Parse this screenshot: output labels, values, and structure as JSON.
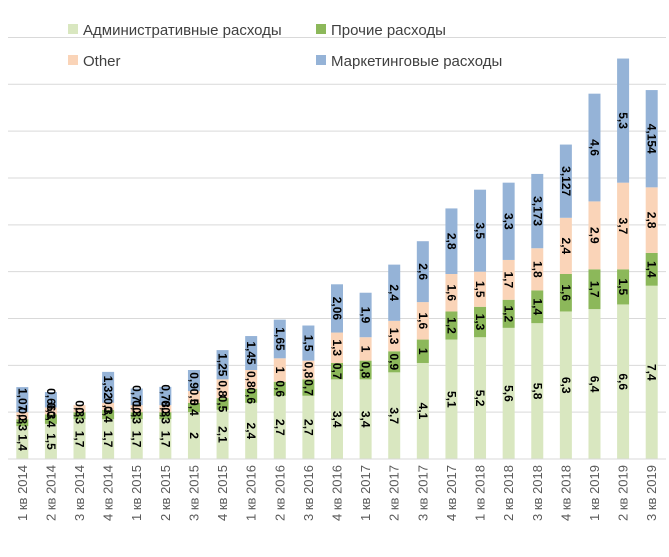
{
  "chart_data": {
    "type": "bar",
    "stacked": true,
    "title": "",
    "xlabel": "",
    "ylabel": "",
    "ylim": [
      0,
      19.6
    ],
    "grid": true,
    "legend_position": "top",
    "categories": [
      "1 кв 2014",
      "2 кв 2014",
      "3 кв 2014",
      "4 кв 2014",
      "1 кв 2015",
      "2 кв 2015",
      "3 кв 2015",
      "4 кв 2015",
      "1 кв 2016",
      "2 кв 2016",
      "3 кв 2016",
      "4 кв 2016",
      "1 кв 2017",
      "2 кв 2017",
      "3 кв 2017",
      "4 кв 2017",
      "1 кв 2018",
      "2 кв 2018",
      "3 кв 2018",
      "4 кв 2018",
      "1 кв 2019",
      "2 кв 2019",
      "3 кв 2019"
    ],
    "series": [
      {
        "name": "Административные расходы",
        "color": "#d9e7c0",
        "values": [
          1.4,
          1.5,
          1.7,
          1.7,
          1.7,
          1.7,
          2,
          2.1,
          2.4,
          2.7,
          2.7,
          3.4,
          3.4,
          3.7,
          4.1,
          5.1,
          5.2,
          5.6,
          5.8,
          6.3,
          6.4,
          6.6,
          7.4
        ],
        "labels": [
          "1,4",
          "1,5",
          "1,7",
          "1,7",
          "1,7",
          "1,7",
          "2",
          "2,1",
          "2,4",
          "2,7",
          "2,7",
          "3,4",
          "3,4",
          "3,7",
          "4,1",
          "5,1",
          "5,2",
          "5,6",
          "5,8",
          "6,3",
          "6,4",
          "6,6",
          "7,4"
        ]
      },
      {
        "name": "Прочие расходы",
        "color": "#8cb85a",
        "values": [
          0.3,
          0.4,
          0.3,
          0.4,
          0.3,
          0.3,
          0.4,
          0.5,
          0.6,
          0.6,
          0.7,
          0.7,
          0.8,
          0.9,
          1,
          1.2,
          1.3,
          1.2,
          1.4,
          1.6,
          1.7,
          1.5,
          1.4
        ],
        "labels": [
          "0,3",
          "0,4",
          "0,3",
          "0,4",
          "0,3",
          "0,3",
          "0,4",
          "0,5",
          "0,6",
          "0,6",
          "0,7",
          "0,7",
          "0,8",
          "0,9",
          "1",
          "1,2",
          "1,3",
          "1,2",
          "1,4",
          "1,6",
          "1,7",
          "1,5",
          "1,4"
        ]
      },
      {
        "name": "Other",
        "color": "#fad4b8",
        "values": [
          0.3,
          0.3,
          0.3,
          0.3,
          0.3,
          0.3,
          0.5,
          0.8,
          0.8,
          1,
          0.8,
          1.3,
          1,
          1.3,
          1.6,
          1.6,
          1.5,
          1.7,
          1.8,
          2.4,
          2.9,
          3.7,
          2.8
        ],
        "labels": [
          "0,3",
          "0,3",
          "0,3",
          "0,3",
          "0,3",
          "0,3",
          "0,5",
          "0,8",
          "0,8",
          "1",
          "0,8",
          "1,3",
          "1",
          "1,3",
          "1,6",
          "1,6",
          "1,5",
          "1,7",
          "1,8",
          "2,4",
          "2,9",
          "3,7",
          "2,8"
        ]
      },
      {
        "name": "Маркетинговые расходы",
        "color": "#95b3d7",
        "values": [
          1.07,
          0.66,
          0,
          1.32,
          0.71,
          0.78,
          0.9,
          1.25,
          1.45,
          1.65,
          1.5,
          2.06,
          1.9,
          2.4,
          2.6,
          2.8,
          3.5,
          3.3,
          3.173,
          3.127,
          4.6,
          5.3,
          4.154
        ],
        "labels": [
          "1,07",
          "0,66",
          "",
          "1,32",
          "0,71",
          "0,78",
          "0,9",
          "1,25",
          "1,45",
          "1,65",
          "1,5",
          "2,06",
          "1,9",
          "2,4",
          "2,6",
          "2,8",
          "3,5",
          "3,3",
          "3,173",
          "3,127",
          "4,6",
          "5,3",
          "4,154"
        ]
      }
    ],
    "legend": [
      {
        "label": "Административные расходы",
        "color": "#d9e7c0"
      },
      {
        "label": "Прочие расходы",
        "color": "#8cb85a"
      },
      {
        "label": "Other",
        "color": "#fad4b8"
      },
      {
        "label": "Маркетинговые расходы",
        "color": "#95b3d7"
      }
    ]
  }
}
